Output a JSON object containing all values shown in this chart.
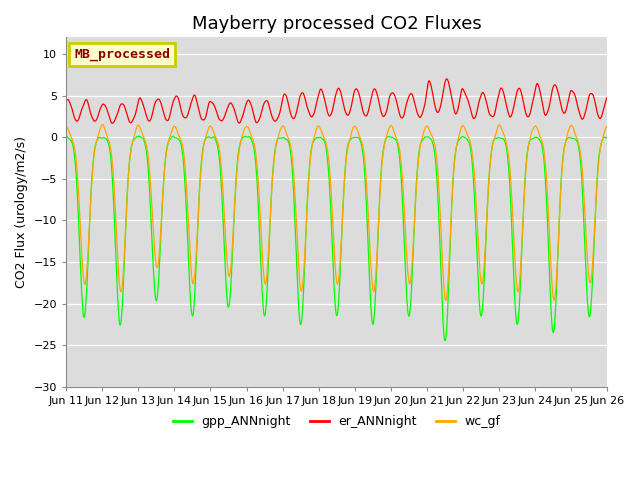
{
  "title": "Mayberry processed CO2 Fluxes",
  "ylabel": "CO2 Flux (urology/m2/s)",
  "xlabel": "",
  "ylim": [
    -30,
    12
  ],
  "yticks": [
    -30,
    -25,
    -20,
    -15,
    -10,
    -5,
    0,
    5,
    10
  ],
  "xstart": 11,
  "xend": 26,
  "legend_entries": [
    "gpp_ANNnight",
    "er_ANNnight",
    "wc_gf"
  ],
  "legend_colors": [
    "#00ff00",
    "#ff0000",
    "#ffa500"
  ],
  "inset_label": "MB_processed",
  "inset_label_color": "#8b0000",
  "inset_bg": "#ffffcc",
  "inset_border": "#cccc00",
  "background_color": "#dcdcdc",
  "n_days": 15,
  "points_per_day": 96,
  "title_fontsize": 13
}
